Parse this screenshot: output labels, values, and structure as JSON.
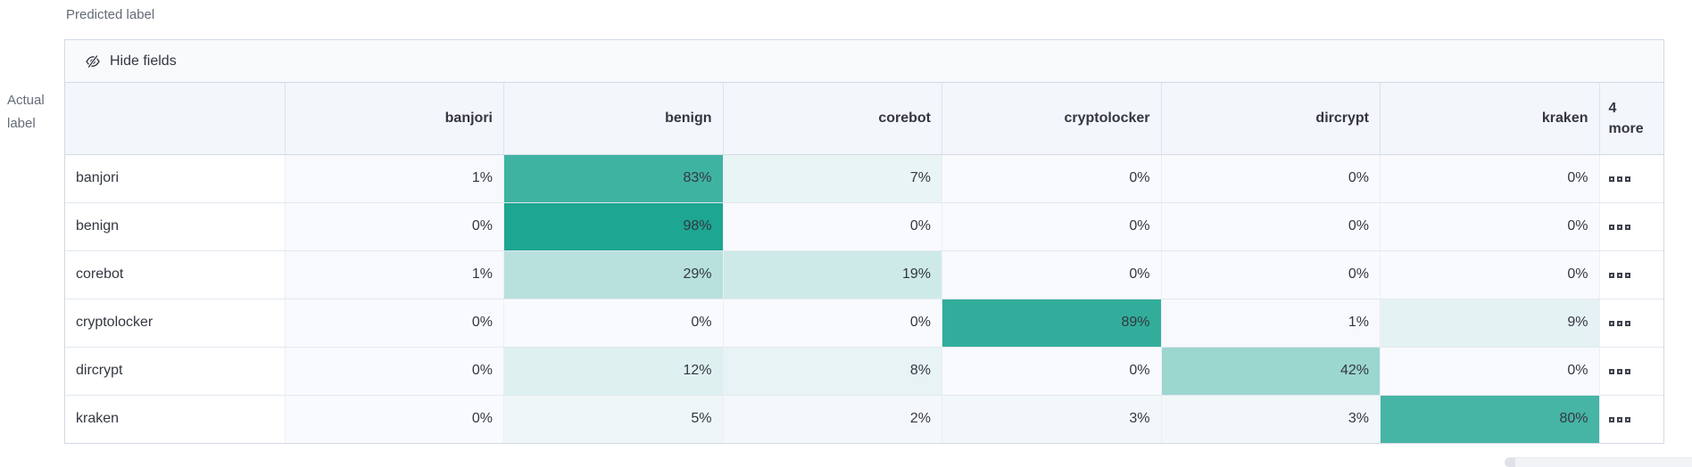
{
  "axis": {
    "predicted": "Predicted label",
    "actual": "Actual label"
  },
  "toolbar": {
    "hide_fields": "Hide fields"
  },
  "grid": {
    "columns": [
      "banjori",
      "benign",
      "corebot",
      "cryptolocker",
      "dircrypt",
      "kraken"
    ],
    "more_header": {
      "count": "4",
      "word": "more"
    },
    "value_suffix": "%",
    "rows": [
      {
        "label": "banjori",
        "values": [
          1,
          83,
          7,
          0,
          0,
          0
        ]
      },
      {
        "label": "benign",
        "values": [
          0,
          98,
          0,
          0,
          0,
          0
        ]
      },
      {
        "label": "corebot",
        "values": [
          1,
          29,
          19,
          0,
          0,
          0
        ]
      },
      {
        "label": "cryptolocker",
        "values": [
          0,
          0,
          0,
          89,
          1,
          9
        ]
      },
      {
        "label": "dircrypt",
        "values": [
          0,
          12,
          8,
          0,
          42,
          0
        ]
      },
      {
        "label": "kraken",
        "values": [
          0,
          5,
          2,
          3,
          3,
          80
        ]
      }
    ]
  },
  "icons": {
    "hide": "eye-slash-icon",
    "cell_more": "boxes-horizontal-icon"
  },
  "colors": {
    "heat_base": "#19A48F",
    "zero_tint": "#F9FAFD",
    "header_bg": "#F3F6FA",
    "toolbar_bg": "#F8FAFC",
    "border_outer": "#D3DAE6",
    "border_row": "#E2E7F0",
    "border_col": "#EBEEF5",
    "text": "#343741",
    "muted_text": "#646A77"
  },
  "chart_data": {
    "type": "heatmap",
    "x_categories": [
      "banjori",
      "benign",
      "corebot",
      "cryptolocker",
      "dircrypt",
      "kraken"
    ],
    "y_categories": [
      "banjori",
      "benign",
      "corebot",
      "cryptolocker",
      "dircrypt",
      "kraken"
    ],
    "values": [
      [
        1,
        83,
        7,
        0,
        0,
        0
      ],
      [
        0,
        98,
        0,
        0,
        0,
        0
      ],
      [
        1,
        29,
        19,
        0,
        0,
        0
      ],
      [
        0,
        0,
        0,
        89,
        1,
        9
      ],
      [
        0,
        12,
        8,
        0,
        42,
        0
      ],
      [
        0,
        5,
        2,
        3,
        3,
        80
      ]
    ],
    "unit": "%",
    "xlabel": "Predicted label",
    "ylabel": "Actual label",
    "hidden_columns_note": "4 more"
  }
}
